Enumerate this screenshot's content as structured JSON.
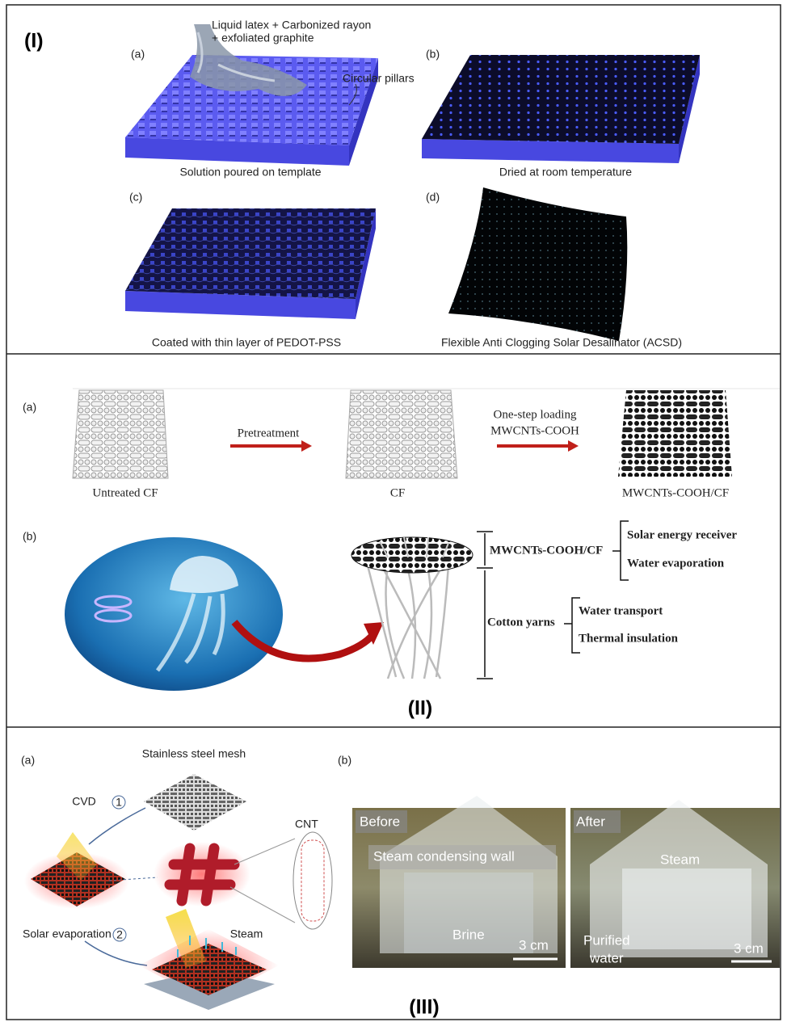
{
  "panel_1": {
    "label": "(I)",
    "subfigures": [
      {
        "label": "(a)",
        "caption": "Solution poured on template",
        "annotations": [
          "Liquid latex + Carbonized rayon",
          "+ exfoliated graphite",
          "Circular pillars"
        ]
      },
      {
        "label": "(b)",
        "caption": "Dried at room temperature"
      },
      {
        "label": "(c)",
        "caption": "Coated with thin layer of PEDOT-PSS"
      },
      {
        "label": "(d)",
        "caption": "Flexible Anti Clogging Solar Desalinator (ACSD)"
      }
    ]
  },
  "panel_2": {
    "label": "(II)",
    "a": {
      "label": "(a)",
      "steps": [
        "Untreated CF",
        "CF",
        "MWCNTs-COOH/CF"
      ],
      "arrow_1": "Pretreatment",
      "arrow_2": [
        "One-step loading",
        "MWCNTs-COOH"
      ]
    },
    "b": {
      "label": "(b)",
      "top_part": "MWCNTs-COOH/CF",
      "top_functions": [
        "Solar energy receiver",
        "Water evaporation"
      ],
      "bottom_part": "Cotton yarns",
      "bottom_functions": [
        "Water transport",
        "Thermal insulation"
      ]
    }
  },
  "panel_3": {
    "label": "(III)",
    "a": {
      "label": "(a)",
      "mesh": "Stainless steel mesh",
      "step_1": "CVD",
      "step_1_number": "1",
      "cnt": "CNT",
      "step_2": "Solar evaporation",
      "step_2_number": "2",
      "steam": "Steam"
    },
    "b": {
      "label": "(b)",
      "before": {
        "title": "Before",
        "wall": "Steam condensing wall",
        "liquid": "Brine",
        "scale": "3 cm"
      },
      "after": {
        "title": "After",
        "steam": "Steam",
        "liquid": [
          "Purified",
          "water"
        ],
        "scale": "3 cm"
      }
    }
  }
}
